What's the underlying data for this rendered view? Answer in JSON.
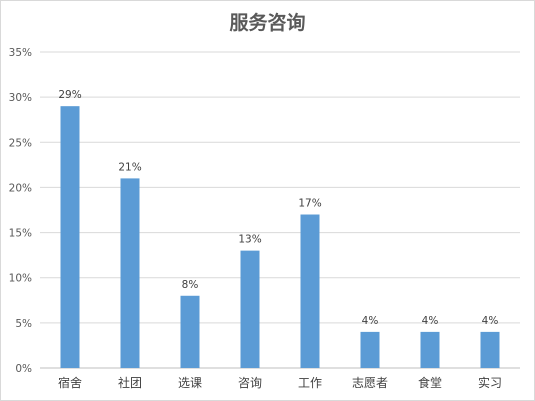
{
  "chart_data": {
    "type": "bar",
    "title": "服务咨询",
    "xlabel": "",
    "ylabel": "",
    "categories": [
      "宿舍",
      "社团",
      "选课",
      "咨询",
      "工作",
      "志愿者",
      "食堂",
      "实习"
    ],
    "values": [
      29,
      21,
      8,
      13,
      17,
      4,
      4,
      4
    ],
    "data_labels": [
      "29%",
      "21%",
      "8%",
      "13%",
      "17%",
      "4%",
      "4%",
      "4%"
    ],
    "ylim": [
      0,
      35
    ],
    "yticks": [
      0,
      5,
      10,
      15,
      20,
      25,
      30,
      35
    ],
    "ytick_labels": [
      "0%",
      "5%",
      "10%",
      "15%",
      "20%",
      "25%",
      "30%",
      "35%"
    ],
    "grid": true,
    "legend": "none",
    "bar_color": "#5b9bd5"
  }
}
